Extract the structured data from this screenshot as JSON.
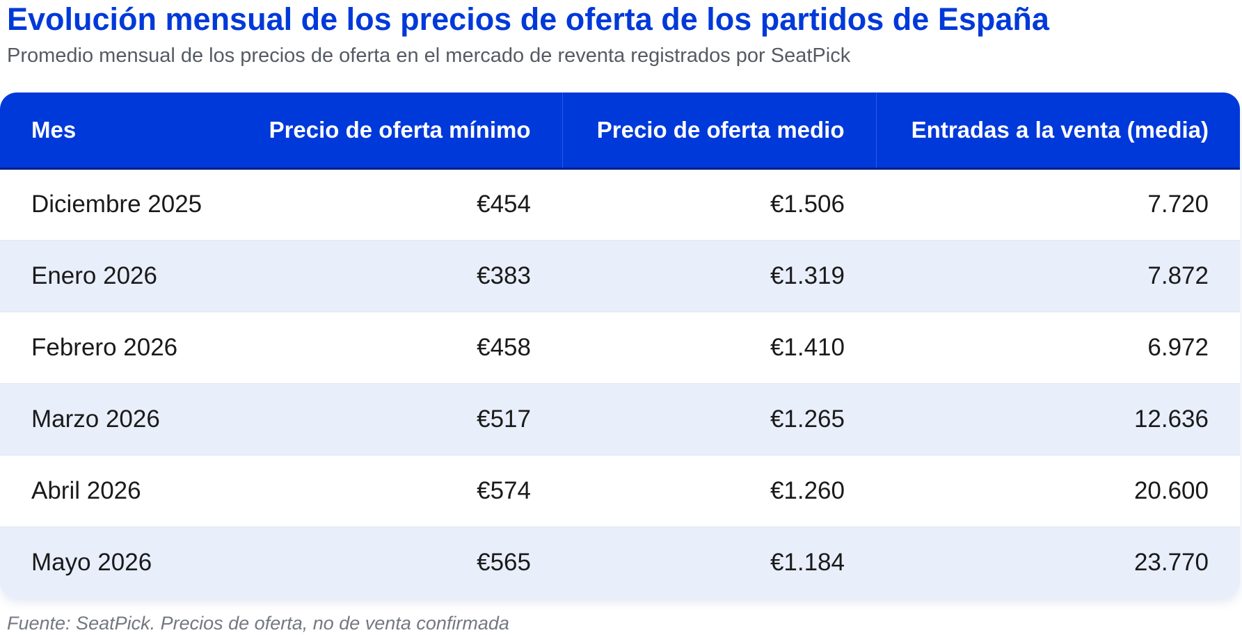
{
  "title": "Evolución mensual de los precios de oferta de los partidos de España",
  "subtitle": "Promedio mensual de los precios de oferta en el mercado de reventa registrados por SeatPick",
  "footer": "Fuente: SeatPick. Precios de oferta, no de venta confirmada",
  "colors": {
    "accent": "#0039d9",
    "row_alt": "#e9eefb"
  },
  "chart_data": {
    "type": "table",
    "columns": [
      "Mes",
      "Precio de oferta mínimo",
      "Precio de oferta medio",
      "Entradas a la venta (media)"
    ],
    "rows": [
      [
        "Diciembre 2025",
        "€454",
        "€1.506",
        "7.720"
      ],
      [
        "Enero 2026",
        "€383",
        "€1.319",
        "7.872"
      ],
      [
        "Febrero 2026",
        "€458",
        "€1.410",
        "6.972"
      ],
      [
        "Marzo 2026",
        "€517",
        "€1.265",
        "12.636"
      ],
      [
        "Abril 2026",
        "€574",
        "€1.260",
        "20.600"
      ],
      [
        "Mayo 2026",
        "€565",
        "€1.184",
        "23.770"
      ]
    ]
  }
}
